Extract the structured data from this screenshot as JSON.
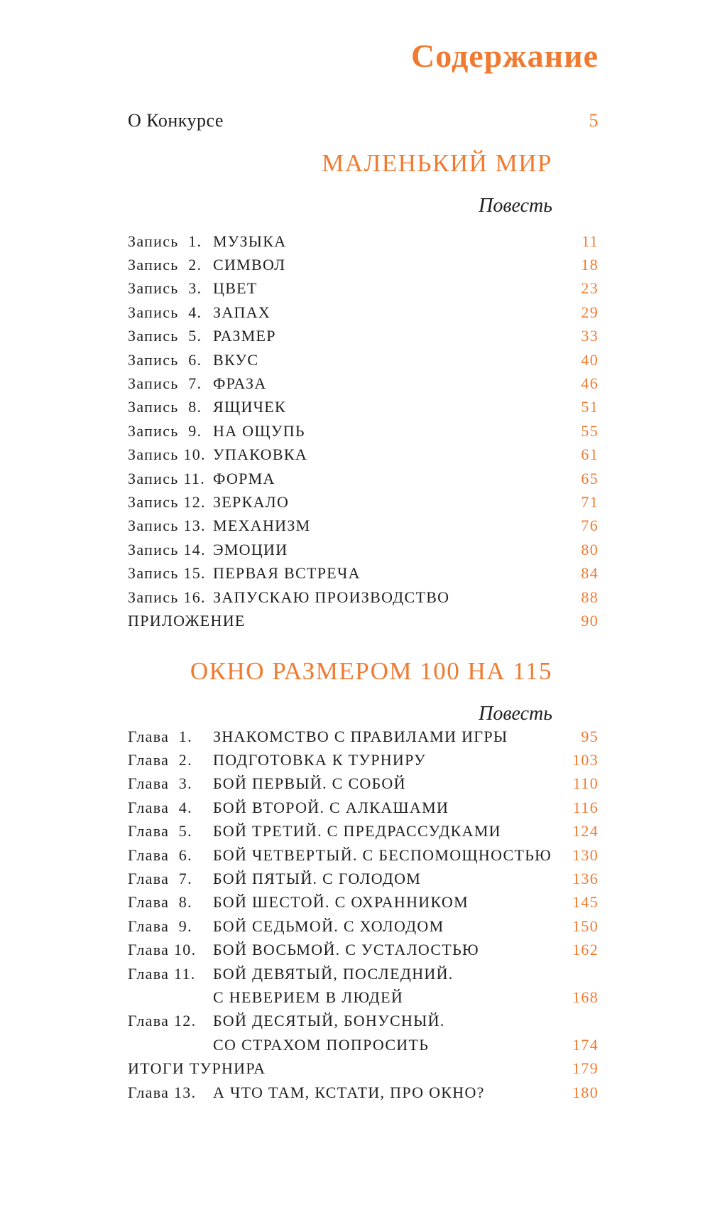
{
  "title": "Содержание",
  "intro": {
    "label": "О Конкурсе",
    "page": "5"
  },
  "colors": {
    "accent": "#f07a30",
    "text": "#1f1f1f"
  },
  "sections": [
    {
      "title": "МАЛЕНЬКИЙ МИР",
      "subtitle": "Повесть",
      "entries": [
        {
          "label": "Запись  1.",
          "title": "МУЗЫКА",
          "page": "11"
        },
        {
          "label": "Запись  2.",
          "title": "СИМВОЛ",
          "page": "18"
        },
        {
          "label": "Запись  3.",
          "title": "ЦВЕТ",
          "page": "23"
        },
        {
          "label": "Запись  4.",
          "title": "ЗАПАХ",
          "page": "29"
        },
        {
          "label": "Запись  5.",
          "title": "РАЗМЕР",
          "page": "33"
        },
        {
          "label": "Запись  6.",
          "title": "ВКУС",
          "page": "40"
        },
        {
          "label": "Запись  7.",
          "title": "ФРАЗА",
          "page": "46"
        },
        {
          "label": "Запись  8.",
          "title": "ЯЩИЧЕК",
          "page": "51"
        },
        {
          "label": "Запись  9.",
          "title": "НА ОЩУПЬ",
          "page": "55"
        },
        {
          "label": "Запись 10.",
          "title": "УПАКОВКА",
          "page": "61"
        },
        {
          "label": "Запись 11.",
          "title": "ФОРМА",
          "page": "65"
        },
        {
          "label": "Запись 12.",
          "title": "ЗЕРКАЛО",
          "page": "71"
        },
        {
          "label": "Запись 13.",
          "title": "МЕХАНИЗМ",
          "page": "76"
        },
        {
          "label": "Запись 14.",
          "title": "ЭМОЦИИ",
          "page": "80"
        },
        {
          "label": "Запись 15.",
          "title": "ПЕРВАЯ ВСТРЕЧА",
          "page": "84"
        },
        {
          "label": "Запись 16.",
          "title": "ЗАПУСКАЮ ПРОИЗВОДСТВО",
          "page": "88"
        },
        {
          "label": "",
          "title": "ПРИЛОЖЕНИЕ",
          "page": "90"
        }
      ]
    },
    {
      "title": "ОКНО РАЗМЕРОМ 100 НА 115",
      "subtitle": "Повесть",
      "entries": [
        {
          "label": "Глава  1.",
          "title": "ЗНАКОМСТВО С ПРАВИЛАМИ ИГРЫ",
          "page": "95"
        },
        {
          "label": "Глава  2.",
          "title": "ПОДГОТОВКА К ТУРНИРУ",
          "page": "103"
        },
        {
          "label": "Глава  3.",
          "title": "БОЙ ПЕРВЫЙ. С СОБОЙ",
          "page": "110"
        },
        {
          "label": "Глава  4.",
          "title": "БОЙ ВТОРОЙ. С АЛКАШАМИ",
          "page": "116"
        },
        {
          "label": "Глава  5.",
          "title": "БОЙ ТРЕТИЙ. С ПРЕДРАССУДКАМИ",
          "page": "124"
        },
        {
          "label": "Глава  6.",
          "title": "БОЙ ЧЕТВЕРТЫЙ. С БЕСПОМОЩНОСТЬЮ",
          "page": "130"
        },
        {
          "label": "Глава  7.",
          "title": "БОЙ ПЯТЫЙ. С ГОЛОДОМ",
          "page": "136"
        },
        {
          "label": "Глава  8.",
          "title": "БОЙ ШЕСТОЙ. С ОХРАННИКОМ",
          "page": "145"
        },
        {
          "label": "Глава  9.",
          "title": "БОЙ СЕДЬМОЙ. С ХОЛОДОМ",
          "page": "150"
        },
        {
          "label": "Глава 10.",
          "title": "БОЙ ВОСЬМОЙ. С УСТАЛОСТЬЮ",
          "page": "162"
        },
        {
          "label": "Глава 11.",
          "title": "БОЙ ДЕВЯТЫЙ, ПОСЛЕДНИЙ.",
          "title2": "С НЕВЕРИЕМ В ЛЮДЕЙ",
          "page": "168"
        },
        {
          "label": "Глава 12.",
          "title": "БОЙ ДЕСЯТЫЙ, БОНУСНЫЙ.",
          "title2": "СО СТРАХОМ ПОПРОСИТЬ",
          "page": "174"
        },
        {
          "label": "",
          "title": "ИТОГИ ТУРНИРА",
          "page": "179"
        },
        {
          "label": "Глава 13.",
          "title": "А ЧТО ТАМ, КСТАТИ, ПРО ОКНО?",
          "page": "180"
        }
      ]
    }
  ]
}
